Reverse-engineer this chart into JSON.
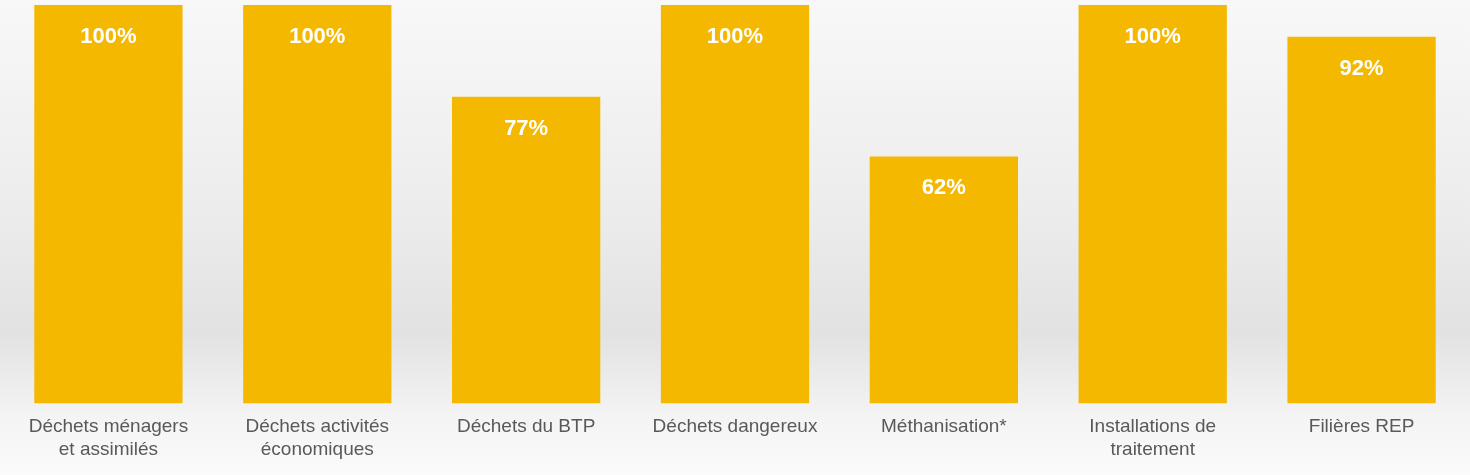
{
  "chart_data": {
    "type": "bar",
    "categories": [
      "Déchets ménagers et assimilés",
      "Déchets activités économiques",
      "Déchets du BTP",
      "Déchets dangereux",
      "Méthanisation*",
      "Installations de traitement",
      "Filières REP"
    ],
    "values": [
      100,
      100,
      77,
      100,
      62,
      100,
      92
    ],
    "color": "#f5b800",
    "value_labels": [
      "100%",
      "100%",
      "77%",
      "100%",
      "62%",
      "100%",
      "92%"
    ]
  }
}
